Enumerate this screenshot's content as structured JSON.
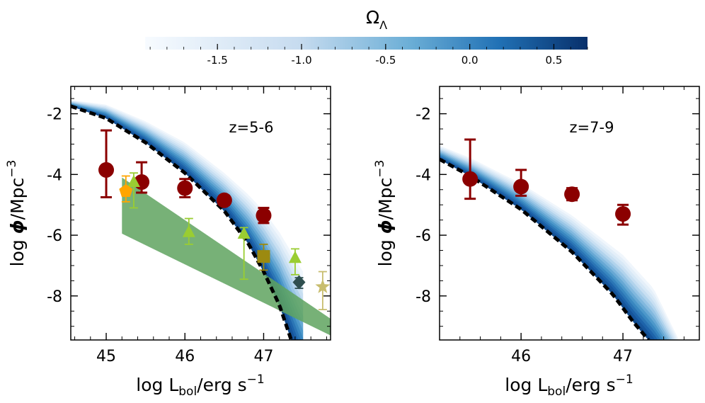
{
  "colorbar": {
    "label_main": "Ω",
    "label_sub": "Λ",
    "range": [
      -1.93,
      0.7
    ],
    "ticks": [
      -1.5,
      -1.0,
      -0.5,
      0.0,
      0.5
    ],
    "tick_labels": [
      "-1.5",
      "-1.0",
      "-0.5",
      "0.0",
      "0.5"
    ],
    "colors": [
      "#f5f9fe",
      "#0b3d7a"
    ]
  },
  "chart_data": [
    {
      "type": "scatter",
      "annotation": "z=5-6",
      "xlabel": {
        "main": "log L",
        "sub": "bol",
        "unit": "/erg s",
        "exp": "−1"
      },
      "ylabel": {
        "main": "log ",
        "phi": "ϕ",
        "unit": "/Mpc",
        "exp": "−3"
      },
      "xlim": [
        44.55,
        47.85
      ],
      "ylim": [
        -9.45,
        -1.1
      ],
      "xticks": [
        45,
        46,
        47
      ],
      "xtick_labels": [
        "45",
        "46",
        "47"
      ],
      "yticks": [
        -2,
        -4,
        -6,
        -8
      ],
      "ytick_labels": [
        "-2",
        "-4",
        "-6",
        "-8"
      ],
      "model_curve": {
        "label": "dashed best fit",
        "x": [
          44.55,
          45.0,
          45.5,
          46.0,
          46.5,
          46.8,
          47.0,
          47.2,
          47.35
        ],
        "y": [
          -1.75,
          -2.15,
          -2.95,
          -3.95,
          -5.2,
          -6.25,
          -7.2,
          -8.3,
          -9.45
        ]
      },
      "model_band": {
        "x": [
          44.55,
          45.0,
          45.5,
          46.0,
          46.5,
          46.8,
          47.0,
          47.2,
          47.5
        ],
        "upper": [
          -1.55,
          -1.7,
          -2.25,
          -2.95,
          -3.95,
          -4.65,
          -5.2,
          -5.9,
          -7.2
        ]
      },
      "green_region": {
        "x": [
          45.2,
          45.2,
          47.85,
          47.85
        ],
        "y": [
          -4.1,
          -5.95,
          -9.3,
          -8.75
        ]
      },
      "series": [
        {
          "name": "dark red circles",
          "marker": "circle",
          "color": "#8b0000",
          "points": [
            {
              "x": 45.0,
              "y": -3.85,
              "yerr_lo": 0.9,
              "yerr_hi": 1.3
            },
            {
              "x": 45.45,
              "y": -4.25,
              "yerr_lo": 0.35,
              "yerr_hi": 0.65
            },
            {
              "x": 46.0,
              "y": -4.45,
              "yerr_lo": 0.3,
              "yerr_hi": 0.3
            },
            {
              "x": 46.5,
              "y": -4.85,
              "yerr_lo": 0.15,
              "yerr_hi": 0.15
            },
            {
              "x": 47.0,
              "y": -5.35,
              "yerr_lo": 0.25,
              "yerr_hi": 0.25
            }
          ]
        },
        {
          "name": "yellow-green triangles",
          "marker": "triangle",
          "color": "#9acd32",
          "points": [
            {
              "x": 45.35,
              "y": -4.25,
              "yerr_lo": 0.85,
              "yerr_hi": 0.3
            },
            {
              "x": 46.05,
              "y": -5.9,
              "yerr_lo": 0.4,
              "yerr_hi": 0.45
            },
            {
              "x": 46.75,
              "y": -5.95,
              "yerr_lo": 1.5,
              "yerr_hi": 0.2
            },
            {
              "x": 47.4,
              "y": -6.75,
              "yerr_lo": 0.55,
              "yerr_hi": 0.3
            }
          ]
        },
        {
          "name": "orange pentagon",
          "marker": "pentagon",
          "color": "#ffa500",
          "points": [
            {
              "x": 45.25,
              "y": -4.55,
              "yerr_lo": 0.35,
              "yerr_hi": 0.5
            }
          ]
        },
        {
          "name": "olive square",
          "marker": "square",
          "color": "#9c8a10",
          "points": [
            {
              "x": 47.0,
              "y": -6.7,
              "yerr_lo": 0.45,
              "yerr_hi": 0.4
            }
          ]
        },
        {
          "name": "dark slate diamond",
          "marker": "diamond",
          "color": "#2f4f4f",
          "points": [
            {
              "x": 47.45,
              "y": -7.55,
              "yerr_lo": 0.2,
              "yerr_hi": 0.15
            }
          ]
        },
        {
          "name": "khaki star",
          "marker": "star",
          "color": "#c8bd6e",
          "points": [
            {
              "x": 47.75,
              "y": -7.7,
              "yerr_lo": 0.75,
              "yerr_hi": 0.5
            }
          ]
        }
      ]
    },
    {
      "type": "scatter",
      "annotation": "z=7-9",
      "xlabel": {
        "main": "log L",
        "sub": "bol",
        "unit": "/erg s",
        "exp": "−1"
      },
      "ylabel": {
        "main": "log ",
        "phi": "ϕ",
        "unit": "/Mpc",
        "exp": "−3"
      },
      "xlim": [
        45.2,
        47.75
      ],
      "ylim": [
        -9.45,
        -1.1
      ],
      "xticks": [
        46,
        47
      ],
      "xtick_labels": [
        "46",
        "47"
      ],
      "yticks": [
        -2,
        -4,
        -6,
        -8
      ],
      "ytick_labels": [
        "-2",
        "-4",
        "-6",
        "-8"
      ],
      "model_curve": {
        "label": "dashed best fit",
        "x": [
          45.2,
          45.5,
          46.0,
          46.5,
          46.9,
          47.1,
          47.25
        ],
        "y": [
          -3.5,
          -4.05,
          -5.15,
          -6.55,
          -7.95,
          -8.85,
          -9.45
        ]
      },
      "model_band": {
        "x": [
          45.2,
          45.5,
          46.0,
          46.5,
          47.0,
          47.3,
          47.55
        ],
        "upper": [
          -3.05,
          -3.45,
          -4.3,
          -5.35,
          -6.65,
          -7.75,
          -9.45
        ]
      },
      "series": [
        {
          "name": "dark red circles",
          "marker": "circle",
          "color": "#8b0000",
          "points": [
            {
              "x": 45.5,
              "y": -4.15,
              "yerr_lo": 0.65,
              "yerr_hi": 1.3
            },
            {
              "x": 46.0,
              "y": -4.4,
              "yerr_lo": 0.3,
              "yerr_hi": 0.55
            },
            {
              "x": 46.5,
              "y": -4.65,
              "yerr_lo": 0.2,
              "yerr_hi": 0.2
            },
            {
              "x": 47.0,
              "y": -5.3,
              "yerr_lo": 0.35,
              "yerr_hi": 0.3
            }
          ]
        }
      ]
    }
  ]
}
